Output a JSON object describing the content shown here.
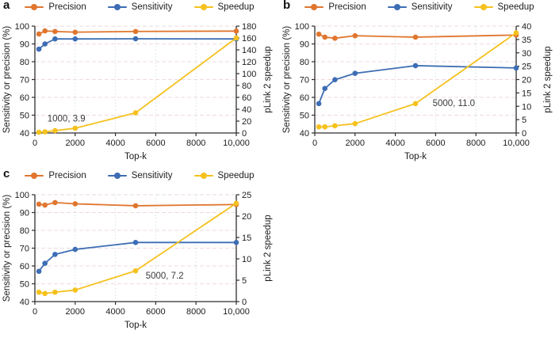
{
  "figure": {
    "panels": [
      {
        "letter": "a"
      },
      {
        "letter": "b"
      },
      {
        "letter": "c"
      }
    ]
  },
  "legend": {
    "items": [
      {
        "label": "Precision",
        "color": "#e0762e"
      },
      {
        "label": "Sensitivity",
        "color": "#3d6db4"
      },
      {
        "label": "Speedup",
        "color": "#f5c11d"
      }
    ]
  },
  "colors": {
    "axis": "#2e2e2e",
    "tick_label": "#1c1c1c",
    "grid_horizontal": "#eed9dd",
    "grid_vertical": "#d9e2f1",
    "annotation": "#3a3a3a",
    "background": "#ffffff"
  },
  "chart_data": [
    {
      "panel": "a",
      "type": "line",
      "x": [
        200,
        500,
        1000,
        2000,
        5000,
        10000
      ],
      "xlim": [
        0,
        10000
      ],
      "xticks": [
        0,
        2000,
        4000,
        6000,
        8000,
        10000
      ],
      "xtick_labels": [
        "0",
        "2000",
        "4000",
        "6000",
        "8000",
        "10,000"
      ],
      "xlabel": "Top-k",
      "left_ylabel": "Sensitivity or precision (%)",
      "left_ylim": [
        40,
        100
      ],
      "left_yticks": [
        40,
        50,
        60,
        70,
        80,
        90,
        100
      ],
      "right_ylabel": "pLink 2 speedup",
      "right_ylim": [
        0,
        180
      ],
      "right_yticks": [
        0,
        20,
        40,
        60,
        80,
        100,
        120,
        140,
        160,
        180
      ],
      "series": [
        {
          "name": "Precision",
          "axis": "left",
          "values": [
            95.6,
            97.3,
            97.0,
            96.6,
            97.0,
            97.2
          ]
        },
        {
          "name": "Sensitivity",
          "axis": "left",
          "values": [
            87.1,
            90.0,
            92.8,
            92.8,
            92.9,
            92.8
          ]
        },
        {
          "name": "Speedup",
          "axis": "right",
          "values": [
            1.2,
            1.9,
            3.9,
            8.0,
            34.0,
            160.0
          ]
        }
      ],
      "annotation": {
        "text": "1000, 3.9",
        "x": 620,
        "y": 48.2
      }
    },
    {
      "panel": "b",
      "type": "line",
      "x": [
        200,
        500,
        1000,
        2000,
        5000,
        10000
      ],
      "xlim": [
        0,
        10000
      ],
      "xticks": [
        0,
        2000,
        4000,
        6000,
        8000,
        10000
      ],
      "xtick_labels": [
        "0",
        "2000",
        "4000",
        "6000",
        "8000",
        "10,000"
      ],
      "xlabel": "Top-k",
      "left_ylabel": "Sensitivity or precision (%)",
      "left_ylim": [
        40,
        100
      ],
      "left_yticks": [
        40,
        50,
        60,
        70,
        80,
        90,
        100
      ],
      "right_ylabel": "pLink 2 speedup",
      "right_ylim": [
        0,
        40
      ],
      "right_yticks": [
        0,
        5,
        10,
        15,
        20,
        25,
        30,
        35,
        40
      ],
      "series": [
        {
          "name": "Precision",
          "axis": "left",
          "values": [
            95.5,
            93.8,
            93.2,
            94.6,
            93.8,
            95.0
          ]
        },
        {
          "name": "Sensitivity",
          "axis": "left",
          "values": [
            56.5,
            65.0,
            69.9,
            73.5,
            77.8,
            76.5
          ]
        },
        {
          "name": "Speedup",
          "axis": "right",
          "values": [
            2.3,
            2.3,
            2.7,
            3.5,
            11.0,
            37.5
          ]
        }
      ],
      "annotation": {
        "text": "5000, 11.0",
        "x": 5850,
        "y": 56.8
      }
    },
    {
      "panel": "c",
      "type": "line",
      "x": [
        200,
        500,
        1000,
        2000,
        5000,
        10000
      ],
      "xlim": [
        0,
        10000
      ],
      "xticks": [
        0,
        2000,
        4000,
        6000,
        8000,
        10000
      ],
      "xtick_labels": [
        "0",
        "2000",
        "4000",
        "6000",
        "8000",
        "10,000"
      ],
      "xlabel": "Top-k",
      "left_ylabel": "Sensitivity or precision (%)",
      "left_ylim": [
        40,
        100
      ],
      "left_yticks": [
        40,
        50,
        60,
        70,
        80,
        90,
        100
      ],
      "right_ylabel": "pLink 2 speedup",
      "right_ylim": [
        0,
        25
      ],
      "right_yticks": [
        0,
        5,
        10,
        15,
        20,
        25
      ],
      "series": [
        {
          "name": "Precision",
          "axis": "left",
          "values": [
            94.7,
            94.2,
            95.6,
            94.9,
            93.8,
            94.5
          ]
        },
        {
          "name": "Sensitivity",
          "axis": "left",
          "values": [
            57.0,
            61.5,
            66.5,
            69.3,
            73.2,
            73.2
          ]
        },
        {
          "name": "Speedup",
          "axis": "right",
          "values": [
            2.2,
            1.9,
            2.2,
            2.7,
            7.2,
            23.0
          ]
        }
      ],
      "annotation": {
        "text": "5000, 7.2",
        "x": 5500,
        "y": 54.6
      }
    }
  ]
}
